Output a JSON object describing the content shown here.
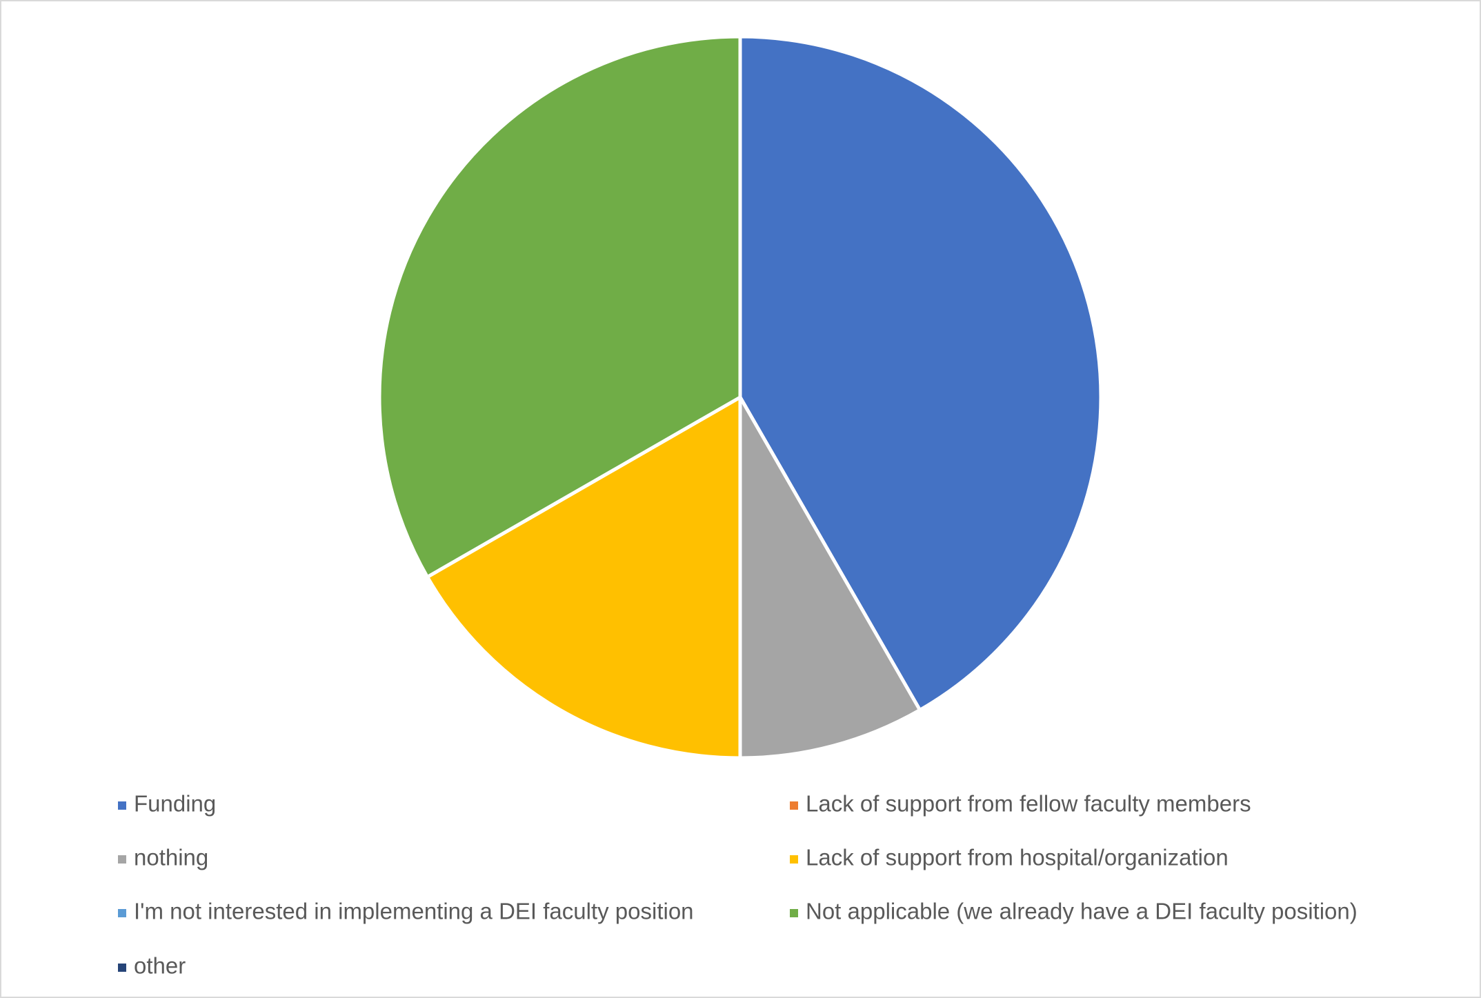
{
  "chart_data": {
    "type": "pie",
    "categories": [
      "Funding",
      "Lack of support from fellow faculty members",
      "nothing",
      "Lack of support from hospital/organization",
      "I'm not interested in implementing a DEI faculty position",
      "Not applicable (we already have a DEI faculty position)",
      "other"
    ],
    "values": [
      41.7,
      0,
      8.3,
      16.7,
      0,
      33.3,
      0
    ],
    "colors": [
      "#4472c4",
      "#ed7d31",
      "#a5a5a5",
      "#ffc000",
      "#5b9bd5",
      "#70ad47",
      "#264478"
    ],
    "legend": "bottom"
  }
}
